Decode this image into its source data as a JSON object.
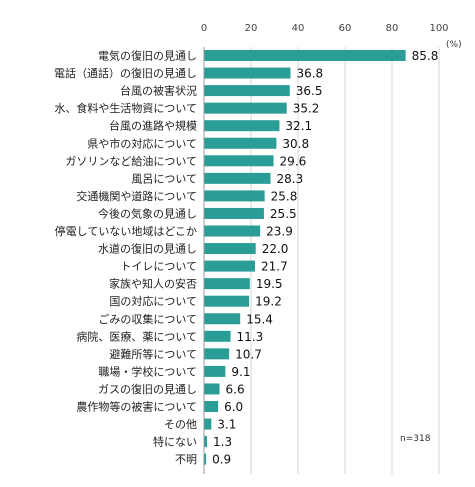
{
  "chart_data": {
    "type": "bar",
    "orientation": "horizontal",
    "title": "",
    "xlabel": "",
    "ylabel": "",
    "unit": "(%)",
    "note": "n=318",
    "xlim": [
      0,
      100
    ],
    "ticks": [
      0,
      20,
      40,
      60,
      80,
      100
    ],
    "grid": true,
    "bar_color": "#2a9d96",
    "categories": [
      "電気の復旧の見通し",
      "電話（通話）の復旧の見通し",
      "台風の被害状況",
      "水、食料や生活物資について",
      "台風の進路や規模",
      "県や市の対応について",
      "ガソリンなど給油について",
      "風呂について",
      "交通機関や道路について",
      "今後の気象の見通し",
      "停電していない地域はどこか",
      "水道の復旧の見通し",
      "トイレについて",
      "家族や知人の安否",
      "国の対応について",
      "ごみの収集について",
      "病院、医療、薬について",
      "避難所等について",
      "職場・学校について",
      "ガスの復旧の見通し",
      "農作物等の被害について",
      "その他",
      "特にない",
      "不明"
    ],
    "values": [
      85.8,
      36.8,
      36.5,
      35.2,
      32.1,
      30.8,
      29.6,
      28.3,
      25.8,
      25.5,
      23.9,
      22.0,
      21.7,
      19.5,
      19.2,
      15.4,
      11.3,
      10.7,
      9.1,
      6.6,
      6.0,
      3.1,
      1.3,
      0.9
    ],
    "value_labels": [
      "85.8",
      "36.8",
      "36.5",
      "35.2",
      "32.1",
      "30.8",
      "29.6",
      "28.3",
      "25.8",
      "25.5",
      "23.9",
      "22.0",
      "21.7",
      "19.5",
      "19.2",
      "15.4",
      "11.3",
      "10.7",
      "9.1",
      "6.6",
      "6.0",
      "3.1",
      "1.3",
      "0.9"
    ]
  }
}
